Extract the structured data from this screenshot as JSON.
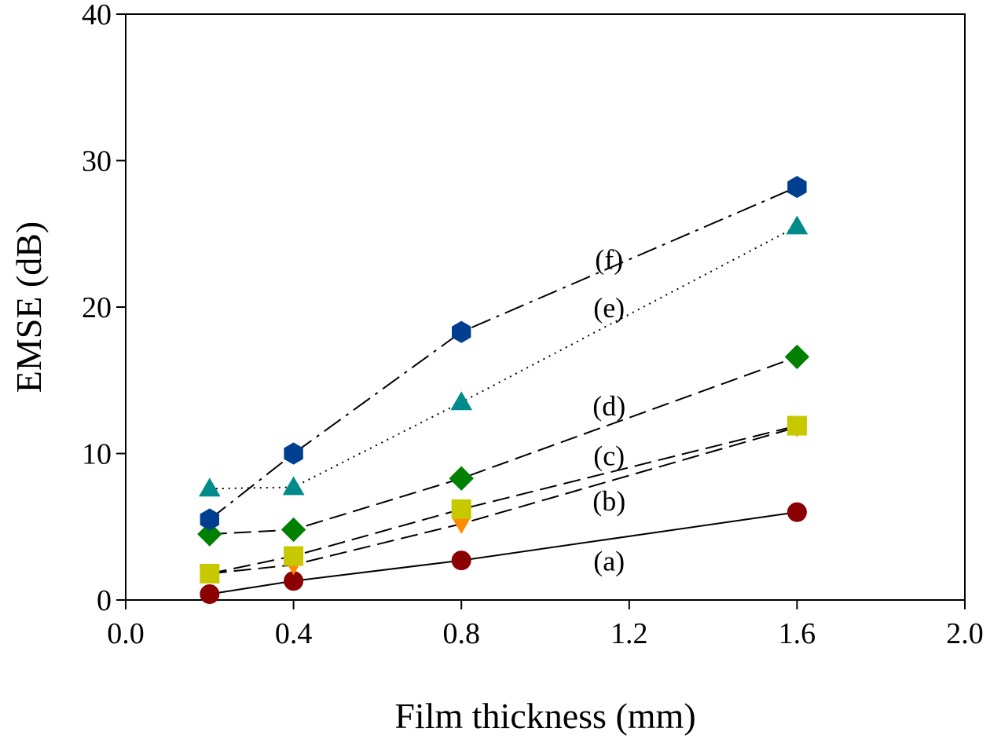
{
  "chart_data": {
    "type": "line",
    "title": "",
    "xlabel": "Film thickness (mm)",
    "ylabel": "EMSE (dB)",
    "xlim": [
      0.0,
      2.0
    ],
    "ylim": [
      0,
      40
    ],
    "x_ticks": [
      {
        "value": 0.0,
        "label": "0.0"
      },
      {
        "value": 0.4,
        "label": "0.4"
      },
      {
        "value": 0.8,
        "label": "0.8"
      },
      {
        "value": 1.2,
        "label": "1.2"
      },
      {
        "value": 1.6,
        "label": "1.6"
      },
      {
        "value": 2.0,
        "label": "2.0"
      }
    ],
    "y_ticks": [
      {
        "value": 0,
        "label": "0"
      },
      {
        "value": 10,
        "label": "10"
      },
      {
        "value": 20,
        "label": "20"
      },
      {
        "value": 30,
        "label": "30"
      },
      {
        "value": 40,
        "label": "40"
      }
    ],
    "grid": false,
    "x": [
      0.2,
      0.4,
      0.8,
      1.6
    ],
    "series": [
      {
        "name": "(a)",
        "marker": "circle",
        "color": "#8B0000",
        "line": "solid",
        "values": [
          0.4,
          1.3,
          2.7,
          6.0
        ],
        "label_at": [
          0.8,
          2.7
        ]
      },
      {
        "name": "(b)",
        "marker": "triangle-down",
        "color": "#FF8C00",
        "line": "dashed",
        "values": [
          1.8,
          2.4,
          5.2,
          11.8
        ],
        "label_at": [
          0.8,
          6.8
        ]
      },
      {
        "name": "(c)",
        "marker": "square",
        "color": "#C8C800",
        "line": "dashed",
        "values": [
          1.8,
          3.0,
          6.2,
          11.9
        ],
        "label_at": [
          0.8,
          9.9
        ]
      },
      {
        "name": "(d)",
        "marker": "diamond",
        "color": "#008000",
        "line": "dashed",
        "values": [
          4.5,
          4.8,
          8.3,
          16.6
        ],
        "label_at": [
          0.8,
          13.3
        ]
      },
      {
        "name": "(e)",
        "marker": "triangle-up",
        "color": "#008B8B",
        "line": "dotted",
        "values": [
          7.6,
          7.7,
          13.5,
          25.5
        ],
        "label_at": [
          0.8,
          20.0
        ]
      },
      {
        "name": "(f)",
        "marker": "hexagon",
        "color": "#003F8F",
        "line": "dashdot",
        "values": [
          5.5,
          10.0,
          18.3,
          28.2
        ],
        "label_at": [
          0.8,
          23.3
        ]
      }
    ]
  }
}
